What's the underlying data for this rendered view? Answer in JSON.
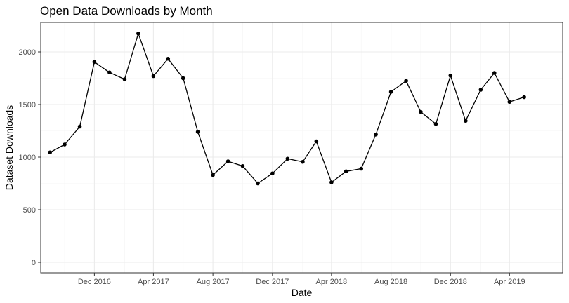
{
  "chart_data": {
    "type": "line",
    "title": "Open Data Downloads by Month",
    "xlabel": "Date",
    "ylabel": "Dataset Downloads",
    "x_tick_labels": [
      "Dec 2016",
      "Apr 2017",
      "Aug 2017",
      "Dec 2017",
      "Apr 2018",
      "Aug 2018",
      "Dec 2018",
      "Apr 2019"
    ],
    "y_ticks": [
      0,
      500,
      1000,
      1500,
      2000
    ],
    "ylim": [
      -100,
      2280
    ],
    "xlim": [
      "2016-08-13",
      "2019-07-19"
    ],
    "grid": true,
    "legend": "none",
    "series": [
      {
        "points": [
          {
            "x": "2016-09-01",
            "y": 1045
          },
          {
            "x": "2016-10-01",
            "y": 1120
          },
          {
            "x": "2016-11-01",
            "y": 1290
          },
          {
            "x": "2016-12-01",
            "y": 1905
          },
          {
            "x": "2017-01-01",
            "y": 1805
          },
          {
            "x": "2017-02-01",
            "y": 1740
          },
          {
            "x": "2017-03-01",
            "y": 2175
          },
          {
            "x": "2017-04-01",
            "y": 1770
          },
          {
            "x": "2017-05-01",
            "y": 1935
          },
          {
            "x": "2017-06-01",
            "y": 1750
          },
          {
            "x": "2017-07-01",
            "y": 1240
          },
          {
            "x": "2017-08-01",
            "y": 830
          },
          {
            "x": "2017-09-01",
            "y": 960
          },
          {
            "x": "2017-10-01",
            "y": 915
          },
          {
            "x": "2017-11-01",
            "y": 750
          },
          {
            "x": "2017-12-01",
            "y": 845
          },
          {
            "x": "2018-01-01",
            "y": 985
          },
          {
            "x": "2018-02-01",
            "y": 955
          },
          {
            "x": "2018-03-01",
            "y": 1150
          },
          {
            "x": "2018-04-01",
            "y": 760
          },
          {
            "x": "2018-05-01",
            "y": 865
          },
          {
            "x": "2018-06-01",
            "y": 890
          },
          {
            "x": "2018-07-01",
            "y": 1215
          },
          {
            "x": "2018-08-01",
            "y": 1620
          },
          {
            "x": "2018-09-01",
            "y": 1725
          },
          {
            "x": "2018-10-01",
            "y": 1430
          },
          {
            "x": "2018-11-01",
            "y": 1315
          },
          {
            "x": "2018-12-01",
            "y": 1775
          },
          {
            "x": "2019-01-01",
            "y": 1345
          },
          {
            "x": "2019-02-01",
            "y": 1640
          },
          {
            "x": "2019-03-01",
            "y": 1800
          },
          {
            "x": "2019-04-01",
            "y": 1525
          },
          {
            "x": "2019-05-01",
            "y": 1570
          }
        ]
      }
    ],
    "colors": {
      "line": "#000000",
      "point": "#000000",
      "grid_major": "#ebebeb",
      "grid_minor": "#f5f5f5",
      "panel_border": "#333333",
      "tick_text": "#4d4d4d"
    }
  }
}
